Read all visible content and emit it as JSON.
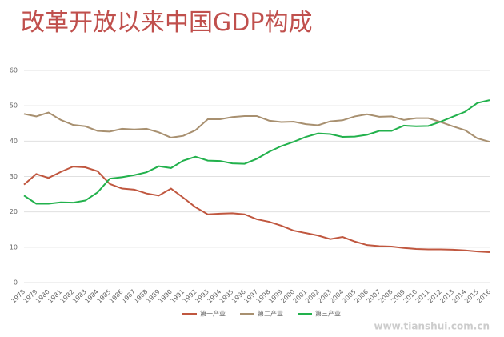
{
  "chart_data": {
    "type": "line",
    "title": "改革开放以来中国GDP构成",
    "categories": [
      "1978",
      "1979",
      "1980",
      "1981",
      "1982",
      "1983",
      "1984",
      "1985",
      "1986",
      "1987",
      "1988",
      "1989",
      "1990",
      "1991",
      "1992",
      "1993",
      "1994",
      "1995",
      "1996",
      "1997",
      "1998",
      "1999",
      "2000",
      "2001",
      "2002",
      "2003",
      "2004",
      "2005",
      "2006",
      "2007",
      "2008",
      "2009",
      "2010",
      "2011",
      "2012",
      "2013",
      "2014",
      "2015",
      "2016"
    ],
    "series": [
      {
        "name": "第一产业",
        "color": "#c0573f",
        "values": [
          27.7,
          30.7,
          29.6,
          31.3,
          32.8,
          32.6,
          31.5,
          27.9,
          26.6,
          26.3,
          25.2,
          24.6,
          26.6,
          24.0,
          21.3,
          19.3,
          19.5,
          19.6,
          19.3,
          17.9,
          17.2,
          16.1,
          14.7,
          14.0,
          13.3,
          12.3,
          12.9,
          11.6,
          10.6,
          10.3,
          10.2,
          9.8,
          9.5,
          9.4,
          9.4,
          9.3,
          9.1,
          8.8,
          8.6
        ]
      },
      {
        "name": "第二产业",
        "color": "#a89070",
        "values": [
          47.7,
          47.0,
          48.1,
          46.0,
          44.6,
          44.2,
          42.9,
          42.7,
          43.5,
          43.3,
          43.5,
          42.5,
          41.0,
          41.5,
          43.1,
          46.2,
          46.2,
          46.8,
          47.1,
          47.1,
          45.8,
          45.4,
          45.5,
          44.8,
          44.5,
          45.6,
          45.9,
          47.0,
          47.6,
          46.9,
          47.0,
          46.0,
          46.5,
          46.5,
          45.4,
          44.2,
          43.1,
          40.8,
          39.8
        ]
      },
      {
        "name": "第三产业",
        "color": "#22b14c",
        "values": [
          24.6,
          22.3,
          22.3,
          22.7,
          22.6,
          23.2,
          25.5,
          29.4,
          29.8,
          30.4,
          31.2,
          32.9,
          32.4,
          34.5,
          35.6,
          34.5,
          34.4,
          33.7,
          33.6,
          35.0,
          37.0,
          38.6,
          39.8,
          41.2,
          42.2,
          42.0,
          41.2,
          41.3,
          41.8,
          42.9,
          42.9,
          44.4,
          44.2,
          44.3,
          45.5,
          46.9,
          48.3,
          50.8,
          51.6
        ]
      }
    ],
    "ylim": [
      0,
      60
    ],
    "yticks": [
      0,
      10,
      20,
      30,
      40,
      50,
      60
    ],
    "grid": true,
    "legend": "bottom",
    "watermark": "www.tianshui.com.cn"
  }
}
